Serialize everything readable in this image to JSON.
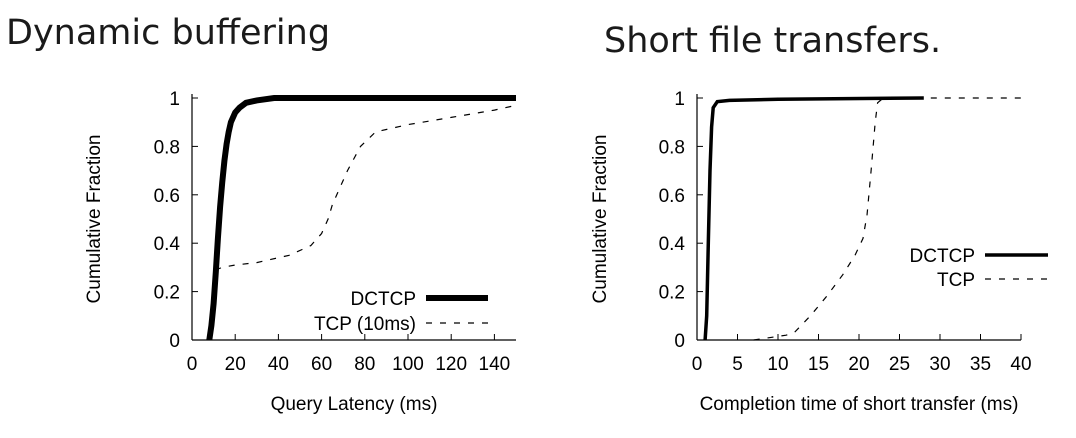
{
  "page": {
    "title_left": "Dynamic buffering",
    "title_right": "Short file transfers."
  },
  "chart_data": [
    {
      "type": "line",
      "title": "Dynamic buffering",
      "xlabel": "Query Latency (ms)",
      "ylabel": "Cumulative Fraction",
      "xlim": [
        0,
        150
      ],
      "ylim": [
        0,
        1
      ],
      "x_ticks": [
        0,
        20,
        40,
        60,
        80,
        100,
        120,
        140
      ],
      "y_ticks": [
        0,
        0.2,
        0.4,
        0.6,
        0.8,
        1
      ],
      "y_tick_labels": [
        "0",
        "0.2",
        "0.4",
        "0.6",
        "0.8",
        "1"
      ],
      "grid": false,
      "legend_position": "bottom-right",
      "series": [
        {
          "name": "DCTCP",
          "style": "solid-thick",
          "points": [
            [
              8,
              0
            ],
            [
              9,
              0.06
            ],
            [
              10,
              0.15
            ],
            [
              11,
              0.28
            ],
            [
              12,
              0.42
            ],
            [
              13,
              0.55
            ],
            [
              14,
              0.65
            ],
            [
              15,
              0.74
            ],
            [
              16,
              0.81
            ],
            [
              17,
              0.86
            ],
            [
              18,
              0.9
            ],
            [
              20,
              0.94
            ],
            [
              22,
              0.96
            ],
            [
              25,
              0.98
            ],
            [
              30,
              0.99
            ],
            [
              38,
              1.0
            ],
            [
              150,
              1.0
            ]
          ]
        },
        {
          "name": "TCP (10ms)",
          "style": "dashed",
          "points": [
            [
              8,
              0
            ],
            [
              9,
              0.1
            ],
            [
              10,
              0.22
            ],
            [
              11,
              0.29
            ],
            [
              14,
              0.3
            ],
            [
              20,
              0.31
            ],
            [
              30,
              0.32
            ],
            [
              45,
              0.35
            ],
            [
              55,
              0.39
            ],
            [
              60,
              0.44
            ],
            [
              63,
              0.5
            ],
            [
              65,
              0.56
            ],
            [
              68,
              0.62
            ],
            [
              72,
              0.7
            ],
            [
              78,
              0.8
            ],
            [
              85,
              0.86
            ],
            [
              100,
              0.89
            ],
            [
              120,
              0.92
            ],
            [
              140,
              0.95
            ],
            [
              150,
              0.97
            ]
          ]
        }
      ]
    },
    {
      "type": "line",
      "title": "Short file transfers.",
      "xlabel": "Completion time of short transfer (ms)",
      "ylabel": "Cumulative Fraction",
      "xlim": [
        0,
        40
      ],
      "ylim": [
        0,
        1
      ],
      "x_ticks": [
        0,
        5,
        10,
        15,
        20,
        25,
        30,
        35,
        40
      ],
      "y_ticks": [
        0,
        0.2,
        0.4,
        0.6,
        0.8,
        1
      ],
      "y_tick_labels": [
        "0",
        "0.2",
        "0.4",
        "0.6",
        "0.8",
        "1"
      ],
      "grid": false,
      "legend_position": "center-right",
      "series": [
        {
          "name": "DCTCP",
          "style": "solid",
          "points": [
            [
              1.0,
              0
            ],
            [
              1.2,
              0.1
            ],
            [
              1.4,
              0.4
            ],
            [
              1.6,
              0.7
            ],
            [
              1.8,
              0.88
            ],
            [
              2.0,
              0.96
            ],
            [
              2.5,
              0.985
            ],
            [
              4,
              0.99
            ],
            [
              10,
              0.995
            ],
            [
              28,
              1.0
            ]
          ]
        },
        {
          "name": "TCP",
          "style": "dashed",
          "points": [
            [
              7,
              0
            ],
            [
              11,
              0.02
            ],
            [
              12,
              0.03
            ],
            [
              14,
              0.1
            ],
            [
              16,
              0.18
            ],
            [
              18,
              0.27
            ],
            [
              19.5,
              0.35
            ],
            [
              20.5,
              0.42
            ],
            [
              21,
              0.52
            ],
            [
              21.5,
              0.7
            ],
            [
              22,
              0.9
            ],
            [
              22.3,
              0.98
            ],
            [
              23,
              1.0
            ],
            [
              40,
              1.0
            ]
          ]
        }
      ]
    }
  ]
}
